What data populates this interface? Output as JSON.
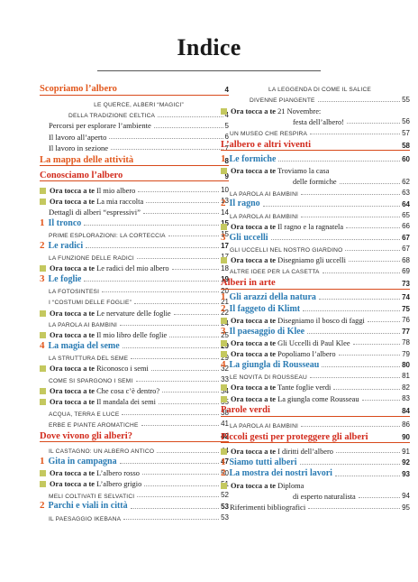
{
  "title": "Indice",
  "left": [
    {
      "k": "sec",
      "c": "orange",
      "t": "Scopriamo l’albero",
      "p": "4"
    },
    {
      "k": "cap2",
      "t1": "LE QUERCE, ALBERI “MAGICI”",
      "t2": "DELLA TRADIZIONE CELTICA",
      "p": "4"
    },
    {
      "k": "ser",
      "t": "Percorsi per esplorare l’ambiente",
      "p": "5"
    },
    {
      "k": "ser",
      "t": "Il lavoro all’aperto",
      "p": "6"
    },
    {
      "k": "ser",
      "t": "Il lavoro in sezione",
      "p": "7"
    },
    {
      "k": "sec",
      "c": "orange",
      "t": "La mappa delle attività",
      "p": "8"
    },
    {
      "k": "sec",
      "c": "red",
      "t": "Conosciamo l’albero",
      "p": "9"
    },
    {
      "k": "ota",
      "t": "Il mio albero",
      "p": "10"
    },
    {
      "k": "ota",
      "t": "La mia raccolta",
      "p": "13"
    },
    {
      "k": "ser",
      "t": "Dettagli di alberi “espressivi”",
      "p": "14"
    },
    {
      "k": "sub",
      "n": "1",
      "t": "Il tronco",
      "p": "15"
    },
    {
      "k": "cap",
      "t": "PRIME ESPLORAZIONI: LA CORTECCIA",
      "p": "15"
    },
    {
      "k": "sub",
      "n": "2",
      "t": "Le radici",
      "p": "17"
    },
    {
      "k": "cap",
      "t": "LA FUNZIONE DELLE RADICI",
      "p": "17"
    },
    {
      "k": "ota",
      "t": "Le radici del mio albero",
      "p": "18"
    },
    {
      "k": "sub",
      "n": "3",
      "t": "Le foglie",
      "p": "19"
    },
    {
      "k": "cap",
      "t": "LA FOTOSINTESI",
      "p": "20"
    },
    {
      "k": "cap",
      "t": "I “COSTUMI DELLE FOGLIE”",
      "p": "21"
    },
    {
      "k": "ota",
      "t": "Le nervature delle foglie",
      "p": "22"
    },
    {
      "k": "cap",
      "t": "LA PAROLA AI BAMBINI",
      "p": "24"
    },
    {
      "k": "ota",
      "t": "Il mio libro delle foglie",
      "p": "25"
    },
    {
      "k": "sub",
      "n": "4",
      "t": "La magia del seme",
      "p": "29"
    },
    {
      "k": "cap",
      "t": "LA STRUTTURA DEL SEME",
      "p": "29"
    },
    {
      "k": "ota",
      "t": "Riconosco i semi",
      "p": "32"
    },
    {
      "k": "cap",
      "t": "COME SI SPARGONO I SEMI",
      "p": "33"
    },
    {
      "k": "ota",
      "t": "Che cosa c’è dentro?",
      "p": "34"
    },
    {
      "k": "ota",
      "t": "Il mandala dei semi",
      "p": "35"
    },
    {
      "k": "cap",
      "t": "ACQUA, TERRA E LUCE",
      "p": "38"
    },
    {
      "k": "cap",
      "t": "ERBE E PIANTE AROMATICHE",
      "p": "41"
    },
    {
      "k": "sec",
      "c": "red",
      "t": "Dove vivono gli alberi?",
      "p": "42"
    },
    {
      "k": "cap",
      "t": "IL CASTAGNO: UN ALBERO ANTICO",
      "p": "44"
    },
    {
      "k": "sub",
      "n": "1",
      "t": "Gita in campagna",
      "p": "47"
    },
    {
      "k": "ota",
      "t": "L’albero rosso",
      "p": "50"
    },
    {
      "k": "ota",
      "t": "L’albero grigio",
      "p": "51"
    },
    {
      "k": "cap",
      "t": "MELI COLTIVATI E SELVATICI",
      "p": "52"
    },
    {
      "k": "sub",
      "n": "2",
      "t": "Parchi e viali in città",
      "p": "53"
    },
    {
      "k": "cap",
      "t": "IL PAESAGGIO IKEBANA",
      "p": "53"
    }
  ],
  "right": [
    {
      "k": "cap2",
      "t1": "LA LEGGENDA DI COME IL SALICE",
      "t2": "DIVENNE PIANGENTE",
      "p": "55"
    },
    {
      "k": "ota2",
      "t1": "21 Novembre:",
      "t2": "festa dell’albero!",
      "p": "56"
    },
    {
      "k": "cap",
      "t": "UN MUSEO CHE RESPIRA",
      "p": "57"
    },
    {
      "k": "sec",
      "c": "red",
      "t": "L’albero e altri viventi",
      "p": "58"
    },
    {
      "k": "sub",
      "n": "1",
      "t": "Le formiche",
      "p": "60"
    },
    {
      "k": "ota2",
      "t1": "Troviamo la casa",
      "t2": "delle formiche",
      "p": "62"
    },
    {
      "k": "cap",
      "t": "LA PAROLA AI BAMBINI",
      "p": "63"
    },
    {
      "k": "sub",
      "n": "2",
      "t": "Il ragno",
      "p": "64"
    },
    {
      "k": "cap",
      "t": "LA PAROLA AI BAMBINI",
      "p": "65"
    },
    {
      "k": "ota",
      "t": "Il ragno e la ragnatela",
      "p": "66"
    },
    {
      "k": "sub",
      "n": "3",
      "t": "Gli uccelli",
      "p": "67"
    },
    {
      "k": "cap",
      "t": "GLI UCCELLI NEL NOSTRO GIARDINO",
      "p": "67"
    },
    {
      "k": "ota",
      "t": "Disegniamo gli uccelli",
      "p": "68"
    },
    {
      "k": "cap",
      "t": "ALTRE IDEE PER LA CASETTA",
      "p": "69"
    },
    {
      "k": "sec",
      "c": "red",
      "t": "Alberi in arte",
      "p": "73"
    },
    {
      "k": "sub",
      "n": "1",
      "t": "Gli arazzi della natura",
      "p": "74"
    },
    {
      "k": "sub",
      "n": "2",
      "t": "Il faggeto di Klimt",
      "p": "75"
    },
    {
      "k": "ota",
      "t": "Disegniamo il bosco di faggi",
      "p": "76"
    },
    {
      "k": "sub",
      "n": "3",
      "t": "Il paesaggio di Klee",
      "p": "77"
    },
    {
      "k": "ota",
      "t": "Gli Uccelli di Paul Klee",
      "p": "78"
    },
    {
      "k": "ota",
      "t": "Popoliamo l’albero",
      "p": "79"
    },
    {
      "k": "sub",
      "n": "4",
      "t": "La giungla di Rousseau",
      "p": "80"
    },
    {
      "k": "cap",
      "t": "LE NOVITÀ DI ROUSSEAU",
      "p": "81"
    },
    {
      "k": "ota",
      "t": "Tante foglie verdi",
      "p": "82"
    },
    {
      "k": "ota",
      "t": "La giungla come Rousseau",
      "p": "83"
    },
    {
      "k": "sec",
      "c": "red",
      "t": "Parole verdi",
      "p": "84"
    },
    {
      "k": "cap",
      "t": "LA PAROLA AI BAMBINI",
      "p": "86"
    },
    {
      "k": "sec",
      "c": "red",
      "t": "Piccoli gesti per proteggere gli alberi",
      "p": "90"
    },
    {
      "k": "ota",
      "t": "I diritti dell’albero",
      "p": "91"
    },
    {
      "k": "sub",
      "n": "1",
      "t": "Siamo tutti alberi",
      "p": "92"
    },
    {
      "k": "sub",
      "n": "2",
      "t": "La mostra dei nostri lavori",
      "p": "93"
    },
    {
      "k": "ota2",
      "t1": "Diploma",
      "t2": "di esperto naturalista",
      "p": "94"
    },
    {
      "k": "ser",
      "t": "Riferimenti bibliografici",
      "p": "95"
    }
  ],
  "ota_prefix": "Ora tocca a te",
  "colors": {
    "section_orange": "#e2571c",
    "section_red": "#d22a1c",
    "subsection_blue": "#2a7bb3",
    "square": "#c4c85f",
    "rule": "#d84a1b"
  }
}
